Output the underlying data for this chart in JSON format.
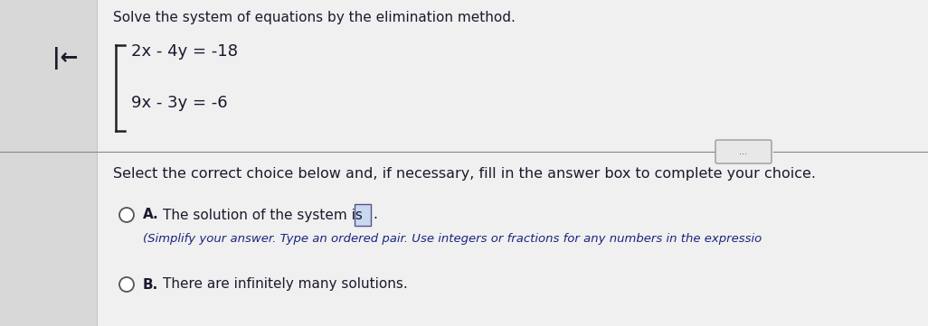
{
  "bg_left": "#d8d8d8",
  "bg_right": "#f0f0f0",
  "title": "Solve the system of equations by the elimination method.",
  "eq1": "2x - 4y = -18",
  "eq2": "9x - 3y = -6",
  "select_text": "Select the correct choice below and, if necessary, fill in the answer box to complete your choice.",
  "choice_a_label": "A.",
  "choice_a_text": "The solution of the system is",
  "choice_a_sub": "(Simplify your answer. Type an ordered pair. Use integers or fractions for any numbers in the expressio",
  "choice_b_label": "B.",
  "choice_b_text": "There are infinitely many solutions.",
  "arrow_symbol": "|←",
  "dots_button": "...",
  "text_color_dark": "#1a1a2e",
  "text_color_blue": "#1a237e",
  "divider_color": "#888888",
  "bracket_color": "#222222"
}
